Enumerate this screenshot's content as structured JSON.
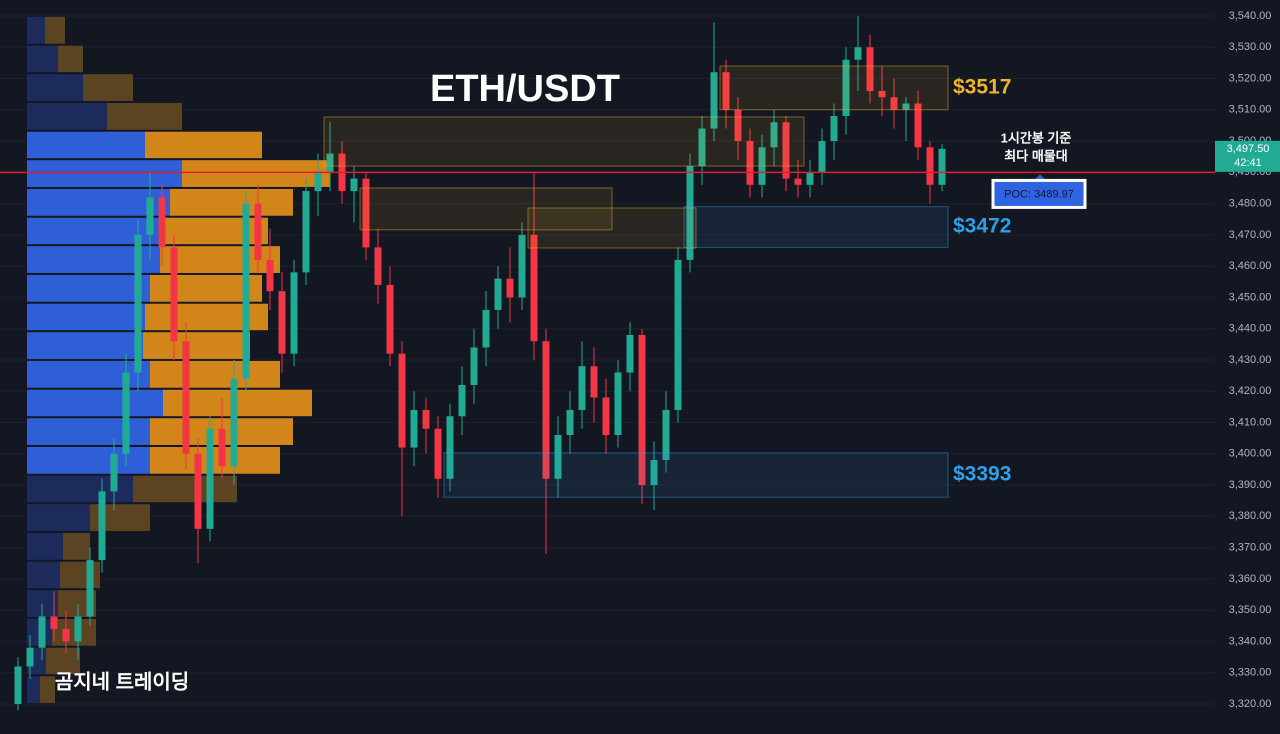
{
  "chart_data": {
    "type": "candlestick",
    "title": "ETH/USDT",
    "watermark": "곰지네 트레이딩",
    "annotation_lines": [
      "1시간봉 기준",
      "최다 매물대"
    ],
    "up_color": "#22ab94",
    "down_color": "#f23645",
    "ylim": [
      3310.4,
      3545.1
    ],
    "yticks": [
      {
        "value": 3320,
        "label": "3,320.00"
      },
      {
        "value": 3330,
        "label": "3,330.00"
      },
      {
        "value": 3340,
        "label": "3,340.00"
      },
      {
        "value": 3350,
        "label": "3,350.00"
      },
      {
        "value": 3360,
        "label": "3,360.00"
      },
      {
        "value": 3370,
        "label": "3,370.00"
      },
      {
        "value": 3380,
        "label": "3,380.00"
      },
      {
        "value": 3390,
        "label": "3,390.00"
      },
      {
        "value": 3400,
        "label": "3,400.00"
      },
      {
        "value": 3410,
        "label": "3,410.00"
      },
      {
        "value": 3420,
        "label": "3,420.00"
      },
      {
        "value": 3430,
        "label": "3,430.00"
      },
      {
        "value": 3440,
        "label": "3,440.00"
      },
      {
        "value": 3450,
        "label": "3,450.00"
      },
      {
        "value": 3460,
        "label": "3,460.00"
      },
      {
        "value": 3470,
        "label": "3,470.00"
      },
      {
        "value": 3480,
        "label": "3,480.00"
      },
      {
        "value": 3490,
        "label": "3,490.00"
      },
      {
        "value": 3500,
        "label": "3,500.00"
      },
      {
        "value": 3510,
        "label": "3,510.00"
      },
      {
        "value": 3520,
        "label": "3,520.00"
      },
      {
        "value": 3530,
        "label": "3,530.00"
      },
      {
        "value": 3540,
        "label": "3,540.00"
      }
    ],
    "candles": [
      [
        3320,
        3335,
        3318,
        3332
      ],
      [
        3332,
        3342,
        3328,
        3338
      ],
      [
        3338,
        3352,
        3334,
        3348
      ],
      [
        3348,
        3356,
        3340,
        3344
      ],
      [
        3344,
        3350,
        3336,
        3340
      ],
      [
        3340,
        3352,
        3334,
        3348
      ],
      [
        3348,
        3370,
        3345,
        3366
      ],
      [
        3366,
        3392,
        3362,
        3388
      ],
      [
        3388,
        3405,
        3382,
        3400
      ],
      [
        3400,
        3432,
        3396,
        3426
      ],
      [
        3426,
        3475,
        3420,
        3470
      ],
      [
        3470,
        3490,
        3462,
        3482
      ],
      [
        3482,
        3486,
        3460,
        3466
      ],
      [
        3466,
        3470,
        3430,
        3436
      ],
      [
        3436,
        3442,
        3395,
        3400
      ],
      [
        3400,
        3405,
        3365,
        3376
      ],
      [
        3376,
        3412,
        3372,
        3408
      ],
      [
        3408,
        3418,
        3392,
        3396
      ],
      [
        3396,
        3430,
        3390,
        3424
      ],
      [
        3424,
        3484,
        3420,
        3480
      ],
      [
        3480,
        3486,
        3458,
        3462
      ],
      [
        3462,
        3472,
        3446,
        3452
      ],
      [
        3452,
        3458,
        3426,
        3432
      ],
      [
        3432,
        3462,
        3428,
        3458
      ],
      [
        3458,
        3488,
        3454,
        3484
      ],
      [
        3484,
        3496,
        3476,
        3490
      ],
      [
        3490,
        3506,
        3484,
        3496
      ],
      [
        3496,
        3500,
        3480,
        3484
      ],
      [
        3484,
        3492,
        3474,
        3488
      ],
      [
        3488,
        3490,
        3462,
        3466
      ],
      [
        3466,
        3472,
        3448,
        3454
      ],
      [
        3454,
        3460,
        3428,
        3432
      ],
      [
        3432,
        3436,
        3380,
        3402
      ],
      [
        3402,
        3420,
        3396,
        3414
      ],
      [
        3414,
        3418,
        3400,
        3408
      ],
      [
        3408,
        3412,
        3386,
        3392
      ],
      [
        3392,
        3416,
        3388,
        3412
      ],
      [
        3412,
        3428,
        3406,
        3422
      ],
      [
        3422,
        3440,
        3416,
        3434
      ],
      [
        3434,
        3452,
        3428,
        3446
      ],
      [
        3446,
        3460,
        3440,
        3456
      ],
      [
        3456,
        3466,
        3442,
        3450
      ],
      [
        3450,
        3474,
        3446,
        3470
      ],
      [
        3470,
        3490,
        3430,
        3436
      ],
      [
        3436,
        3440,
        3368,
        3392
      ],
      [
        3392,
        3412,
        3386,
        3406
      ],
      [
        3406,
        3420,
        3400,
        3414
      ],
      [
        3414,
        3436,
        3408,
        3428
      ],
      [
        3428,
        3434,
        3410,
        3418
      ],
      [
        3418,
        3424,
        3400,
        3406
      ],
      [
        3406,
        3430,
        3402,
        3426
      ],
      [
        3426,
        3442,
        3420,
        3438
      ],
      [
        3438,
        3440,
        3384,
        3390
      ],
      [
        3390,
        3404,
        3382,
        3398
      ],
      [
        3398,
        3420,
        3394,
        3414
      ],
      [
        3414,
        3466,
        3410,
        3462
      ],
      [
        3462,
        3496,
        3458,
        3492
      ],
      [
        3492,
        3508,
        3486,
        3504
      ],
      [
        3504,
        3538,
        3500,
        3522
      ],
      [
        3522,
        3526,
        3504,
        3510
      ],
      [
        3510,
        3514,
        3494,
        3500
      ],
      [
        3500,
        3504,
        3482,
        3486
      ],
      [
        3486,
        3502,
        3482,
        3498
      ],
      [
        3498,
        3510,
        3492,
        3506
      ],
      [
        3506,
        3508,
        3484,
        3488
      ],
      [
        3488,
        3494,
        3482,
        3486
      ],
      [
        3486,
        3494,
        3482,
        3490
      ],
      [
        3490,
        3504,
        3486,
        3500
      ],
      [
        3500,
        3512,
        3494,
        3508
      ],
      [
        3508,
        3530,
        3502,
        3526
      ],
      [
        3526,
        3540,
        3516,
        3530
      ],
      [
        3530,
        3534,
        3512,
        3516
      ],
      [
        3516,
        3524,
        3508,
        3514
      ],
      [
        3514,
        3520,
        3504,
        3510
      ],
      [
        3510,
        3514,
        3500,
        3512
      ],
      [
        3512,
        3516,
        3494,
        3498
      ],
      [
        3498,
        3500,
        3480,
        3486
      ],
      [
        3486,
        3499,
        3484,
        3497.5
      ]
    ],
    "last_price": {
      "value": 3497.5,
      "label": "3,497.50"
    },
    "countdown": "42:41",
    "poc": {
      "value": 3489.97,
      "label": "POC: 3489.97"
    },
    "zones": [
      {
        "label": "$3517",
        "color": "#f0b429",
        "top": 3524,
        "bottom": 3510,
        "start": 59,
        "end": 77
      },
      {
        "color": "#f0b429",
        "top": 3507.7,
        "bottom": 3492,
        "start": 26,
        "end": 65
      },
      {
        "color": "#f0b429",
        "top": 3485,
        "bottom": 3471.6,
        "start": 29,
        "end": 49
      },
      {
        "color": "#f0b429",
        "top": 3478.6,
        "bottom": 3465.8,
        "start": 43,
        "end": 56
      },
      {
        "label": "$3472",
        "color": "#2f9fe6",
        "top": 3479,
        "bottom": 3466,
        "start": 56,
        "end": 77
      },
      {
        "label": "$3393",
        "color": "#2f9fe6",
        "top": 3400.3,
        "bottom": 3386.1,
        "start": 36,
        "end": 77
      }
    ],
    "volume_profile": {
      "price_bins": [
        3540,
        3530.8,
        3521.7,
        3512.5,
        3503.3,
        3494.2,
        3485,
        3475.8,
        3466.7,
        3457.5,
        3448.3,
        3439.2,
        3430,
        3420.8,
        3411.7,
        3402.5,
        3393.3,
        3384.2,
        3375,
        3365.8,
        3356.7,
        3347.5,
        3338.3,
        3329.2,
        3320
      ],
      "buy": [
        18,
        31,
        56,
        80,
        118,
        155,
        143,
        136,
        133,
        123,
        118,
        116,
        123,
        136,
        123,
        123,
        106,
        63,
        36,
        33,
        31,
        25,
        19,
        13
      ],
      "sell": [
        20,
        25,
        50,
        75,
        117,
        148,
        123,
        105,
        120,
        112,
        123,
        107,
        130,
        149,
        143,
        130,
        104,
        60,
        27,
        40,
        38,
        44,
        34,
        15
      ],
      "value_area": [
        3393.3,
        3503.3
      ]
    }
  }
}
